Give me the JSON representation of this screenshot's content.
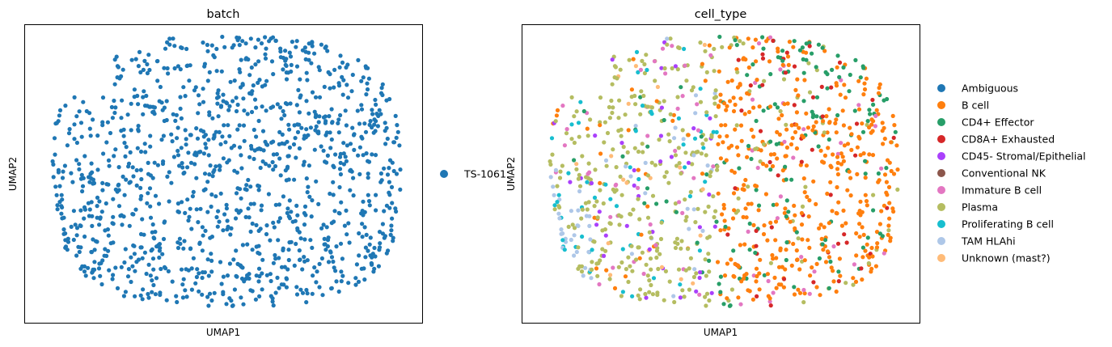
{
  "chart_data": [
    {
      "type": "scatter",
      "title": "batch",
      "xlabel": "UMAP1",
      "ylabel": "UMAP2",
      "grid": false,
      "ticks": false,
      "legend": {
        "placement": "right",
        "entries": [
          {
            "label": "TS-1061",
            "color": "#1f77b4"
          }
        ]
      },
      "n_points": 1200
    },
    {
      "type": "scatter",
      "title": "cell_type",
      "xlabel": "UMAP1",
      "ylabel": "UMAP2",
      "grid": false,
      "ticks": false,
      "legend": {
        "placement": "right",
        "entries": [
          {
            "label": "Ambiguous",
            "color": "#1f77b4"
          },
          {
            "label": "B cell",
            "color": "#ff7f0e"
          },
          {
            "label": "CD4+ Effector",
            "color": "#279e68"
          },
          {
            "label": "CD8A+ Exhausted",
            "color": "#d62728"
          },
          {
            "label": "CD45- Stromal/Epithelial",
            "color": "#aa40fc"
          },
          {
            "label": "Conventional NK",
            "color": "#8c564b"
          },
          {
            "label": "Immature B cell",
            "color": "#e377c2"
          },
          {
            "label": "Plasma",
            "color": "#b5bd61"
          },
          {
            "label": "Proliferating B cell",
            "color": "#17becf"
          },
          {
            "label": "TAM HLAhi",
            "color": "#aec7e8"
          },
          {
            "label": "Unknown (mast?)",
            "color": "#ffbb78"
          }
        ]
      },
      "n_points": 1200
    }
  ]
}
